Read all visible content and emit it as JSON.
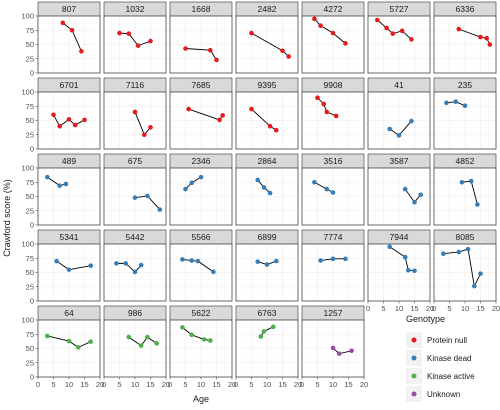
{
  "chart_data": {
    "type": "line",
    "subtype": "faceted-small-multiples",
    "xlabel": "Age",
    "ylabel": "Crawford score (%)",
    "xlim": [
      0,
      20
    ],
    "ylim": [
      0,
      100
    ],
    "x_ticks": [
      0,
      5,
      10,
      15,
      20
    ],
    "y_ticks": [
      0,
      25,
      50,
      75,
      100
    ],
    "grid": true,
    "legend": {
      "title": "Genotype",
      "position": "bottom-right",
      "entries": [
        {
          "label": "Protein null",
          "color": "#E41A1C"
        },
        {
          "label": "Kinase dead",
          "color": "#377EB8"
        },
        {
          "label": "Kinase active",
          "color": "#4DAF4A"
        },
        {
          "label": "Unknown",
          "color": "#984EA3"
        }
      ]
    },
    "panels": [
      {
        "id": "807",
        "genotype": "Protein null",
        "x": [
          8,
          11,
          14
        ],
        "y": [
          88,
          75,
          38
        ]
      },
      {
        "id": "1032",
        "genotype": "Protein null",
        "x": [
          5,
          8,
          11,
          15
        ],
        "y": [
          70,
          69,
          48,
          56
        ]
      },
      {
        "id": "1668",
        "genotype": "Protein null",
        "x": [
          5,
          13,
          15
        ],
        "y": [
          43,
          40,
          23
        ]
      },
      {
        "id": "2482",
        "genotype": "Protein null",
        "x": [
          5,
          15,
          17
        ],
        "y": [
          70,
          39,
          29
        ]
      },
      {
        "id": "4272",
        "genotype": "Protein null",
        "x": [
          4,
          6,
          10,
          14
        ],
        "y": [
          95,
          83,
          70,
          52
        ]
      },
      {
        "id": "5727",
        "genotype": "Protein null",
        "x": [
          3,
          6,
          8,
          11,
          14
        ],
        "y": [
          93,
          79,
          69,
          74,
          59
        ]
      },
      {
        "id": "6336",
        "genotype": "Protein null",
        "x": [
          8,
          15,
          17,
          18
        ],
        "y": [
          77,
          63,
          61,
          50
        ]
      },
      {
        "id": "6701",
        "genotype": "Protein null",
        "x": [
          5,
          7,
          10,
          12,
          15
        ],
        "y": [
          60,
          40,
          52,
          42,
          51
        ]
      },
      {
        "id": "7116",
        "genotype": "Protein null",
        "x": [
          10,
          13,
          15
        ],
        "y": [
          65,
          25,
          38
        ]
      },
      {
        "id": "7685",
        "genotype": "Protein null",
        "x": [
          6,
          16,
          17
        ],
        "y": [
          70,
          51,
          59
        ]
      },
      {
        "id": "9395",
        "genotype": "Protein null",
        "x": [
          5,
          11,
          13
        ],
        "y": [
          70,
          40,
          33
        ]
      },
      {
        "id": "9908",
        "genotype": "Protein null",
        "x": [
          5,
          7,
          8,
          11
        ],
        "y": [
          90,
          79,
          65,
          58
        ]
      },
      {
        "id": "41",
        "genotype": "Kinase dead",
        "x": [
          7,
          10,
          14
        ],
        "y": [
          35,
          24,
          49
        ]
      },
      {
        "id": "235",
        "genotype": "Kinase dead",
        "x": [
          4,
          7,
          10
        ],
        "y": [
          81,
          83,
          76
        ]
      },
      {
        "id": "489",
        "genotype": "Kinase dead",
        "x": [
          3,
          7,
          9
        ],
        "y": [
          84,
          69,
          72
        ]
      },
      {
        "id": "675",
        "genotype": "Kinase dead",
        "x": [
          10,
          14,
          18
        ],
        "y": [
          48,
          51,
          27
        ]
      },
      {
        "id": "2346",
        "genotype": "Kinase dead",
        "x": [
          5,
          7,
          10
        ],
        "y": [
          63,
          74,
          84
        ]
      },
      {
        "id": "2864",
        "genotype": "Kinase dead",
        "x": [
          7,
          9,
          11
        ],
        "y": [
          79,
          66,
          56
        ]
      },
      {
        "id": "3516",
        "genotype": "Kinase dead",
        "x": [
          4,
          8,
          10
        ],
        "y": [
          75,
          63,
          57
        ]
      },
      {
        "id": "3587",
        "genotype": "Kinase dead",
        "x": [
          12,
          15,
          17
        ],
        "y": [
          63,
          40,
          53
        ]
      },
      {
        "id": "4852",
        "genotype": "Kinase dead",
        "x": [
          9,
          12,
          14
        ],
        "y": [
          75,
          77,
          36
        ]
      },
      {
        "id": "5341",
        "genotype": "Kinase dead",
        "x": [
          6,
          10,
          17
        ],
        "y": [
          70,
          55,
          62
        ]
      },
      {
        "id": "5442",
        "genotype": "Kinase dead",
        "x": [
          4,
          7,
          10,
          12
        ],
        "y": [
          66,
          66,
          51,
          63
        ]
      },
      {
        "id": "5566",
        "genotype": "Kinase dead",
        "x": [
          4,
          7,
          9,
          14
        ],
        "y": [
          73,
          71,
          70,
          51
        ]
      },
      {
        "id": "6899",
        "genotype": "Kinase dead",
        "x": [
          7,
          10,
          13
        ],
        "y": [
          69,
          64,
          70
        ]
      },
      {
        "id": "7774",
        "genotype": "Kinase dead",
        "x": [
          6,
          10,
          14
        ],
        "y": [
          71,
          74,
          74
        ]
      },
      {
        "id": "7944",
        "genotype": "Kinase dead",
        "x": [
          7,
          12,
          13,
          15
        ],
        "y": [
          95,
          77,
          54,
          53
        ]
      },
      {
        "id": "8085",
        "genotype": "Kinase dead",
        "x": [
          3,
          8,
          11,
          13,
          15
        ],
        "y": [
          83,
          86,
          91,
          26,
          48
        ]
      },
      {
        "id": "64",
        "genotype": "Kinase active",
        "x": [
          3,
          10,
          13,
          17
        ],
        "y": [
          72,
          63,
          52,
          62
        ]
      },
      {
        "id": "986",
        "genotype": "Kinase active",
        "x": [
          8,
          12,
          14,
          17
        ],
        "y": [
          70,
          55,
          70,
          59
        ]
      },
      {
        "id": "5622",
        "genotype": "Kinase active",
        "x": [
          4,
          7,
          11,
          13
        ],
        "y": [
          87,
          74,
          66,
          64
        ]
      },
      {
        "id": "6763",
        "genotype": "Kinase active",
        "x": [
          8,
          9,
          12
        ],
        "y": [
          71,
          80,
          88
        ]
      },
      {
        "id": "1257",
        "genotype": "Unknown",
        "x": [
          10,
          12,
          16
        ],
        "y": [
          51,
          41,
          46
        ]
      }
    ]
  }
}
